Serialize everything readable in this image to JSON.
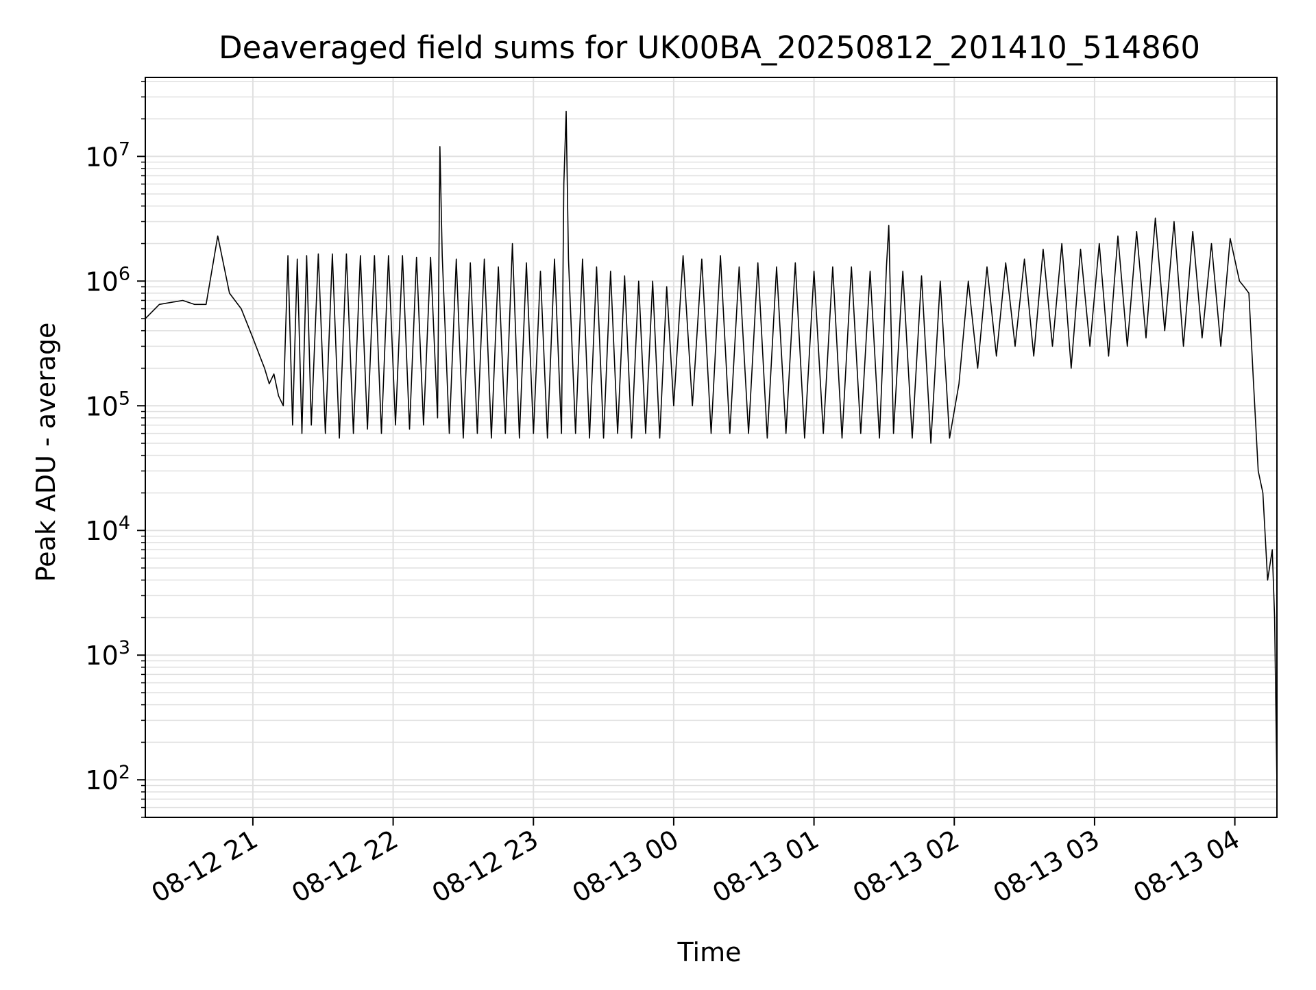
{
  "chart_data": {
    "type": "line",
    "title": "Deaveraged field sums for UK00BA_20250812_201410_514860",
    "xlabel": "Time",
    "ylabel": "Peak ADU - average",
    "y_scale": "log",
    "ylim": [
      50,
      43000000
    ],
    "y_ticks": [
      {
        "value": 100,
        "base": "10",
        "exp": "2"
      },
      {
        "value": 1000,
        "base": "10",
        "exp": "3"
      },
      {
        "value": 10000,
        "base": "10",
        "exp": "4"
      },
      {
        "value": 100000,
        "base": "10",
        "exp": "5"
      },
      {
        "value": 1000000,
        "base": "10",
        "exp": "6"
      },
      {
        "value": 10000000,
        "base": "10",
        "exp": "7"
      }
    ],
    "xlim": [
      "2025-08-12 20:14",
      "2025-08-13 04:18"
    ],
    "x_ticks": [
      {
        "value": "2025-08-12 21:00",
        "label": "08-12 21"
      },
      {
        "value": "2025-08-12 22:00",
        "label": "08-12 22"
      },
      {
        "value": "2025-08-12 23:00",
        "label": "08-12 23"
      },
      {
        "value": "2025-08-13 00:00",
        "label": "08-13 00"
      },
      {
        "value": "2025-08-13 01:00",
        "label": "08-13 01"
      },
      {
        "value": "2025-08-13 02:00",
        "label": "08-13 02"
      },
      {
        "value": "2025-08-13 03:00",
        "label": "08-13 03"
      },
      {
        "value": "2025-08-13 04:00",
        "label": "08-13 04"
      }
    ],
    "grid": true,
    "line_color": "#000000",
    "grid_color": "#e0e0e0",
    "series": [
      {
        "x": [
          "2025-08-12 20:14",
          "2025-08-12 20:20",
          "2025-08-12 20:30",
          "2025-08-12 20:35",
          "2025-08-12 20:40",
          "2025-08-12 20:45",
          "2025-08-12 20:50",
          "2025-08-12 20:55",
          "2025-08-12 21:00",
          "2025-08-12 21:03",
          "2025-08-12 21:05",
          "2025-08-12 21:07",
          "2025-08-12 21:09",
          "2025-08-12 21:11",
          "2025-08-12 21:13",
          "2025-08-12 21:15",
          "2025-08-12 21:17",
          "2025-08-12 21:19",
          "2025-08-12 21:21",
          "2025-08-12 21:23",
          "2025-08-12 21:25",
          "2025-08-12 21:28",
          "2025-08-12 21:31",
          "2025-08-12 21:34",
          "2025-08-12 21:37",
          "2025-08-12 21:40",
          "2025-08-12 21:43",
          "2025-08-12 21:46",
          "2025-08-12 21:49",
          "2025-08-12 21:52",
          "2025-08-12 21:55",
          "2025-08-12 21:58",
          "2025-08-12 22:01",
          "2025-08-12 22:04",
          "2025-08-12 22:07",
          "2025-08-12 22:10",
          "2025-08-12 22:13",
          "2025-08-12 22:16",
          "2025-08-12 22:19",
          "2025-08-12 22:20",
          "2025-08-12 22:21",
          "2025-08-12 22:24",
          "2025-08-12 22:27",
          "2025-08-12 22:30",
          "2025-08-12 22:33",
          "2025-08-12 22:36",
          "2025-08-12 22:39",
          "2025-08-12 22:42",
          "2025-08-12 22:45",
          "2025-08-12 22:48",
          "2025-08-12 22:51",
          "2025-08-12 22:54",
          "2025-08-12 22:57",
          "2025-08-12 23:00",
          "2025-08-12 23:03",
          "2025-08-12 23:06",
          "2025-08-12 23:09",
          "2025-08-12 23:12",
          "2025-08-12 23:13",
          "2025-08-12 23:14",
          "2025-08-12 23:15",
          "2025-08-12 23:18",
          "2025-08-12 23:21",
          "2025-08-12 23:24",
          "2025-08-12 23:27",
          "2025-08-12 23:30",
          "2025-08-12 23:33",
          "2025-08-12 23:36",
          "2025-08-12 23:39",
          "2025-08-12 23:42",
          "2025-08-12 23:45",
          "2025-08-12 23:48",
          "2025-08-12 23:51",
          "2025-08-12 23:54",
          "2025-08-12 23:57",
          "2025-08-13 00:00",
          "2025-08-13 00:04",
          "2025-08-13 00:08",
          "2025-08-13 00:12",
          "2025-08-13 00:16",
          "2025-08-13 00:20",
          "2025-08-13 00:24",
          "2025-08-13 00:28",
          "2025-08-13 00:32",
          "2025-08-13 00:36",
          "2025-08-13 00:40",
          "2025-08-13 00:44",
          "2025-08-13 00:48",
          "2025-08-13 00:52",
          "2025-08-13 00:56",
          "2025-08-13 01:00",
          "2025-08-13 01:04",
          "2025-08-13 01:08",
          "2025-08-13 01:12",
          "2025-08-13 01:16",
          "2025-08-13 01:20",
          "2025-08-13 01:24",
          "2025-08-13 01:28",
          "2025-08-13 01:31",
          "2025-08-13 01:32",
          "2025-08-13 01:34",
          "2025-08-13 01:38",
          "2025-08-13 01:42",
          "2025-08-13 01:46",
          "2025-08-13 01:50",
          "2025-08-13 01:54",
          "2025-08-13 01:58",
          "2025-08-13 02:02",
          "2025-08-13 02:06",
          "2025-08-13 02:10",
          "2025-08-13 02:14",
          "2025-08-13 02:18",
          "2025-08-13 02:22",
          "2025-08-13 02:26",
          "2025-08-13 02:30",
          "2025-08-13 02:34",
          "2025-08-13 02:38",
          "2025-08-13 02:42",
          "2025-08-13 02:46",
          "2025-08-13 02:50",
          "2025-08-13 02:54",
          "2025-08-13 02:58",
          "2025-08-13 03:02",
          "2025-08-13 03:06",
          "2025-08-13 03:10",
          "2025-08-13 03:14",
          "2025-08-13 03:18",
          "2025-08-13 03:22",
          "2025-08-13 03:26",
          "2025-08-13 03:30",
          "2025-08-13 03:34",
          "2025-08-13 03:38",
          "2025-08-13 03:42",
          "2025-08-13 03:46",
          "2025-08-13 03:50",
          "2025-08-13 03:54",
          "2025-08-13 03:58",
          "2025-08-13 04:02",
          "2025-08-13 04:04",
          "2025-08-13 04:06",
          "2025-08-13 04:08",
          "2025-08-13 04:10",
          "2025-08-13 04:12",
          "2025-08-13 04:14",
          "2025-08-13 04:16",
          "2025-08-13 04:17",
          "2025-08-13 04:18"
        ],
        "y": [
          500000,
          650000,
          700000,
          650000,
          650000,
          2300000,
          800000,
          600000,
          350000,
          250000,
          200000,
          150000,
          180000,
          120000,
          100000,
          1600000,
          70000,
          1500000,
          60000,
          1600000,
          70000,
          1650000,
          60000,
          1650000,
          55000,
          1650000,
          60000,
          1600000,
          65000,
          1600000,
          60000,
          1600000,
          70000,
          1600000,
          65000,
          1550000,
          70000,
          1550000,
          80000,
          12000000,
          1600000,
          60000,
          1500000,
          55000,
          1400000,
          60000,
          1500000,
          55000,
          1300000,
          60000,
          2000000,
          55000,
          1400000,
          60000,
          1200000,
          55000,
          1500000,
          60000,
          6000000,
          23000000,
          1500000,
          60000,
          1500000,
          55000,
          1300000,
          55000,
          1200000,
          60000,
          1100000,
          55000,
          1000000,
          60000,
          1000000,
          55000,
          900000,
          100000,
          1600000,
          100000,
          1500000,
          60000,
          1600000,
          60000,
          1300000,
          60000,
          1400000,
          55000,
          1300000,
          60000,
          1400000,
          55000,
          1200000,
          60000,
          1300000,
          55000,
          1300000,
          60000,
          1200000,
          55000,
          1300000,
          2800000,
          60000,
          1200000,
          55000,
          1100000,
          50000,
          1000000,
          55000,
          150000,
          1000000,
          200000,
          1300000,
          250000,
          1400000,
          300000,
          1500000,
          250000,
          1800000,
          300000,
          2000000,
          200000,
          1800000,
          300000,
          2000000,
          250000,
          2300000,
          300000,
          2500000,
          350000,
          3200000,
          400000,
          3000000,
          300000,
          2500000,
          350000,
          2000000,
          300000,
          2200000,
          1000000,
          900000,
          800000,
          150000,
          30000,
          20000,
          4000,
          7000,
          2000,
          90
        ]
      }
    ]
  }
}
